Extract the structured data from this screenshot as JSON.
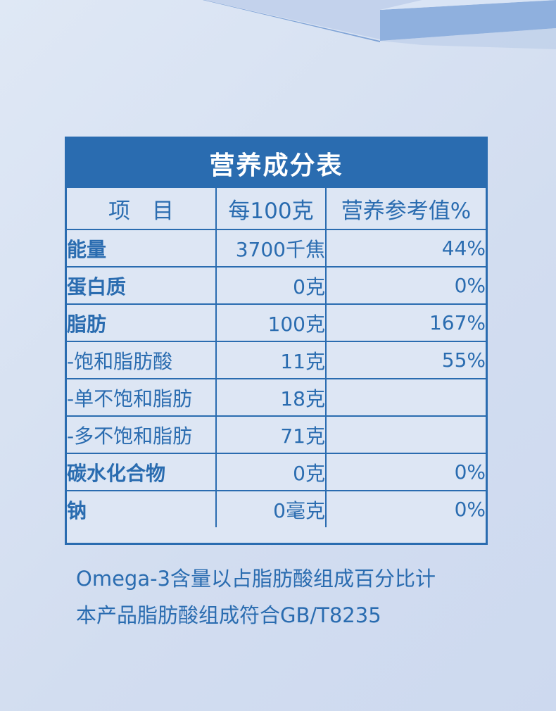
{
  "colors": {
    "accent": "#2a6cb0",
    "header_text": "#ffffff",
    "background": "#d8e2f2"
  },
  "table": {
    "title": "营养成分表",
    "headers": [
      "项　目",
      "每100克",
      "营养参考值%"
    ],
    "rows": [
      {
        "name": "能量",
        "per100": "3700千焦",
        "nrv": "44%",
        "bold": true
      },
      {
        "name": "蛋白质",
        "per100": "0克",
        "nrv": "0%",
        "bold": true
      },
      {
        "name": "脂肪",
        "per100": "100克",
        "nrv": "167%",
        "bold": true
      },
      {
        "name": "-饱和脂肪酸",
        "per100": "11克",
        "nrv": "55%",
        "bold": false
      },
      {
        "name": "-单不饱和脂肪",
        "per100": "18克",
        "nrv": "",
        "bold": false
      },
      {
        "name": "-多不饱和脂肪",
        "per100": "71克",
        "nrv": "",
        "bold": false
      },
      {
        "name": "碳水化合物",
        "per100": "0克",
        "nrv": "0%",
        "bold": true
      },
      {
        "name": "钠",
        "per100": "0毫克",
        "nrv": "0%",
        "bold": true
      }
    ]
  },
  "notes": [
    "Omega-3含量以占脂肪酸组成百分比计",
    "本产品脂肪酸组成符合GB/T8235"
  ]
}
